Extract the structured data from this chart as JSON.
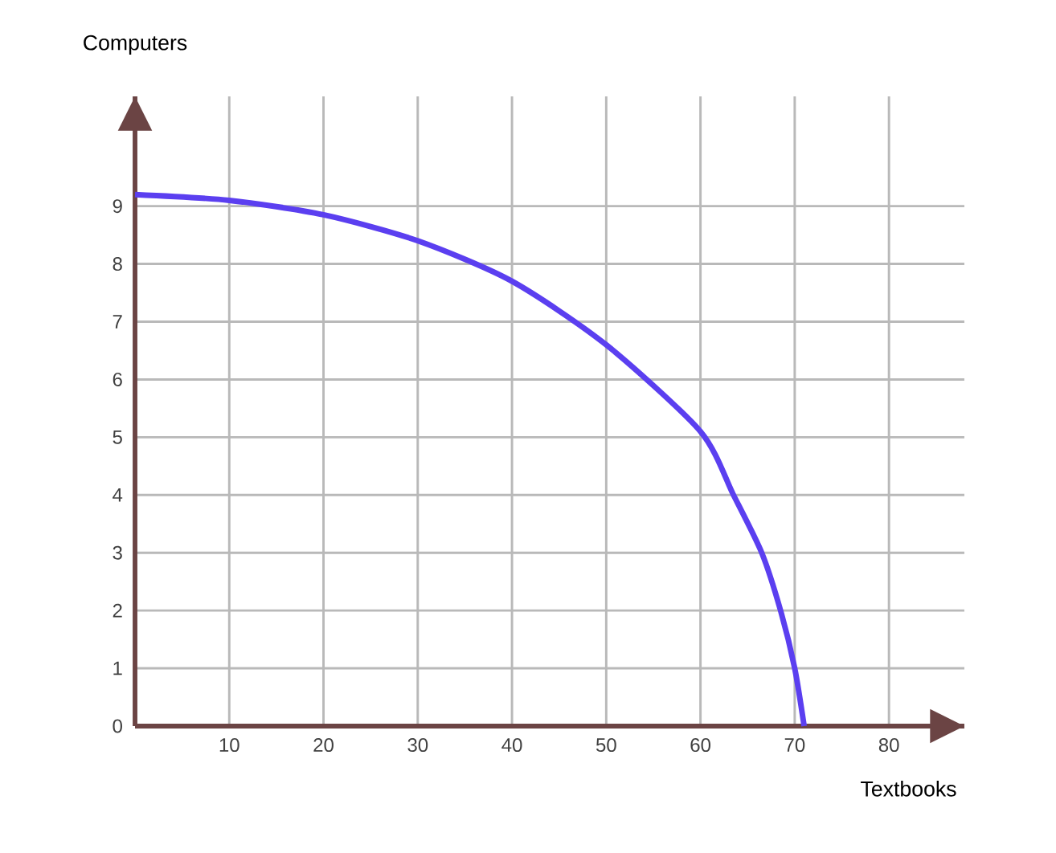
{
  "chart_data": {
    "type": "line",
    "xlabel": "Textbooks",
    "ylabel": "Computers",
    "x": [
      0,
      10,
      20,
      30,
      40,
      50,
      60,
      63.5,
      66.5,
      68.5,
      70,
      71
    ],
    "series": [
      {
        "color": "#5b3ff0",
        "values": [
          9.2,
          9.1,
          8.85,
          8.4,
          7.7,
          6.6,
          5.1,
          4,
          3,
          2,
          1,
          0
        ]
      }
    ],
    "xlim": [
      0,
      88
    ],
    "ylim": [
      0,
      10.9
    ],
    "xticks": [
      10,
      20,
      30,
      40,
      50,
      60,
      70,
      80
    ],
    "yticks": [
      0,
      1,
      2,
      3,
      4,
      5,
      6,
      7,
      8,
      9
    ],
    "grid": true,
    "marker": "none",
    "line_style": "solid"
  }
}
